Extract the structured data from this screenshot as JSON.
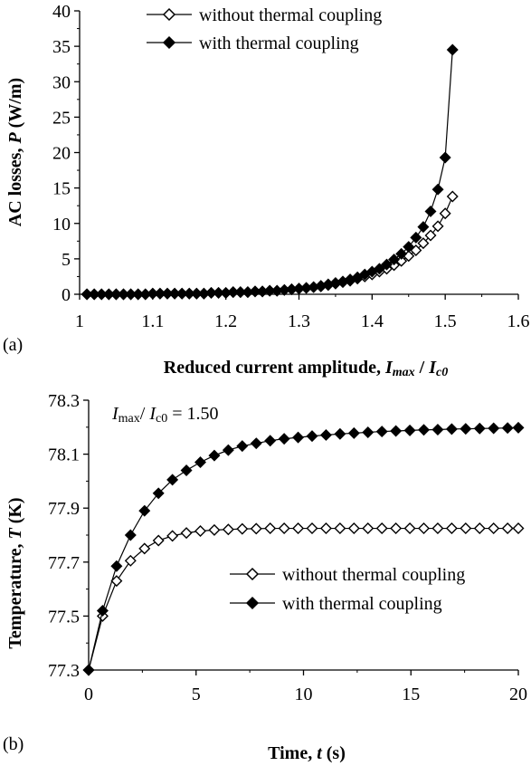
{
  "chart_data": [
    {
      "type": "line",
      "panel_label": "(a)",
      "xlabel": "Reduced current amplitude, ",
      "xlabel_sym": {
        "a": "I",
        "a_sub": "max",
        "sep": " / ",
        "b": "I",
        "b_sub": "c0"
      },
      "ylabel": "AC losses, ",
      "ylabel_sym": "P",
      "ylabel_unit": " (W/m)",
      "xlim": [
        1,
        1.6
      ],
      "ylim": [
        0,
        40
      ],
      "x_ticks": [
        "1",
        "1.1",
        "1.2",
        "1.3",
        "1.4",
        "1.5",
        "1.6"
      ],
      "y_ticks": [
        "0",
        "5",
        "10",
        "15",
        "20",
        "25",
        "30",
        "35",
        "40"
      ],
      "legend_position": "top",
      "series": [
        {
          "name": "without thermal coupling",
          "marker": "open-diamond",
          "x": [
            1.01,
            1.02,
            1.03,
            1.04,
            1.05,
            1.06,
            1.07,
            1.08,
            1.09,
            1.1,
            1.11,
            1.12,
            1.13,
            1.14,
            1.15,
            1.16,
            1.17,
            1.18,
            1.19,
            1.2,
            1.21,
            1.22,
            1.23,
            1.24,
            1.25,
            1.26,
            1.27,
            1.28,
            1.29,
            1.3,
            1.31,
            1.32,
            1.33,
            1.34,
            1.35,
            1.36,
            1.37,
            1.38,
            1.39,
            1.4,
            1.41,
            1.42,
            1.43,
            1.44,
            1.45,
            1.46,
            1.47,
            1.48,
            1.49,
            1.5,
            1.51
          ],
          "y": [
            0,
            0,
            0,
            0,
            0,
            0,
            0,
            0,
            0,
            0.1,
            0.1,
            0.1,
            0.1,
            0.1,
            0.1,
            0.1,
            0.1,
            0.2,
            0.2,
            0.2,
            0.3,
            0.3,
            0.3,
            0.4,
            0.4,
            0.5,
            0.5,
            0.6,
            0.7,
            0.8,
            0.9,
            1.0,
            1.1,
            1.3,
            1.5,
            1.7,
            1.9,
            2.2,
            2.5,
            2.8,
            3.2,
            3.6,
            4.1,
            4.7,
            5.4,
            6.2,
            7.2,
            8.3,
            9.6,
            11.4,
            13.8
          ]
        },
        {
          "name": "with thermal coupling",
          "marker": "filled-diamond",
          "x": [
            1.01,
            1.02,
            1.03,
            1.04,
            1.05,
            1.06,
            1.07,
            1.08,
            1.09,
            1.1,
            1.11,
            1.12,
            1.13,
            1.14,
            1.15,
            1.16,
            1.17,
            1.18,
            1.19,
            1.2,
            1.21,
            1.22,
            1.23,
            1.24,
            1.25,
            1.26,
            1.27,
            1.28,
            1.29,
            1.3,
            1.31,
            1.32,
            1.33,
            1.34,
            1.35,
            1.36,
            1.37,
            1.38,
            1.39,
            1.4,
            1.41,
            1.42,
            1.43,
            1.44,
            1.45,
            1.46,
            1.47,
            1.48,
            1.49,
            1.5,
            1.51
          ],
          "y": [
            0,
            0,
            0,
            0,
            0,
            0,
            0,
            0,
            0,
            0.1,
            0.1,
            0.1,
            0.1,
            0.1,
            0.1,
            0.1,
            0.1,
            0.2,
            0.2,
            0.2,
            0.3,
            0.3,
            0.3,
            0.4,
            0.4,
            0.5,
            0.5,
            0.6,
            0.7,
            0.8,
            0.9,
            1.0,
            1.2,
            1.4,
            1.6,
            1.8,
            2.1,
            2.4,
            2.8,
            3.2,
            3.6,
            4.2,
            4.9,
            5.7,
            6.7,
            8.0,
            9.5,
            11.7,
            14.8,
            19.3,
            34.5
          ]
        }
      ]
    },
    {
      "type": "line",
      "panel_label": "(b)",
      "annotation": {
        "a": "I",
        "a_sub": "max",
        "sep": "/ ",
        "b": "I",
        "b_sub": "c0",
        "value": " = 1.50"
      },
      "xlabel": "Time, ",
      "xlabel_sym": "t",
      "xlabel_unit": "  (s)",
      "ylabel": "Temperature, ",
      "ylabel_sym": "T",
      "ylabel_unit": " (K)",
      "xlim": [
        0,
        20
      ],
      "ylim": [
        77.3,
        78.3
      ],
      "x_ticks": [
        "0",
        "5",
        "10",
        "15",
        "20"
      ],
      "y_ticks": [
        "77.3",
        "77.5",
        "77.7",
        "77.9",
        "78.1",
        "78.3"
      ],
      "legend_position": "right",
      "series": [
        {
          "name": "without thermal coupling",
          "marker": "open-diamond",
          "x": [
            0,
            0.65,
            1.3,
            1.95,
            2.6,
            3.25,
            3.9,
            4.55,
            5.2,
            5.85,
            6.5,
            7.15,
            7.8,
            8.45,
            9.1,
            9.75,
            10.4,
            11.05,
            11.7,
            12.35,
            13.0,
            13.65,
            14.3,
            14.95,
            15.6,
            16.25,
            16.9,
            17.55,
            18.2,
            18.85,
            19.5,
            20
          ],
          "y": [
            77.3,
            77.5,
            77.63,
            77.705,
            77.75,
            77.78,
            77.797,
            77.808,
            77.815,
            77.819,
            77.821,
            77.823,
            77.824,
            77.825,
            77.825,
            77.825,
            77.825,
            77.825,
            77.825,
            77.825,
            77.825,
            77.825,
            77.825,
            77.825,
            77.825,
            77.825,
            77.825,
            77.825,
            77.825,
            77.825,
            77.825,
            77.825
          ]
        },
        {
          "name": "with thermal coupling",
          "marker": "filled-diamond",
          "x": [
            0,
            0.65,
            1.3,
            1.95,
            2.6,
            3.25,
            3.9,
            4.55,
            5.2,
            5.85,
            6.5,
            7.15,
            7.8,
            8.45,
            9.1,
            9.75,
            10.4,
            11.05,
            11.7,
            12.35,
            13.0,
            13.65,
            14.3,
            14.95,
            15.6,
            16.25,
            16.9,
            17.55,
            18.2,
            18.85,
            19.5,
            20
          ],
          "y": [
            77.3,
            77.52,
            77.685,
            77.8,
            77.89,
            77.955,
            78.005,
            78.04,
            78.07,
            78.095,
            78.115,
            78.13,
            78.14,
            78.15,
            78.157,
            78.162,
            78.167,
            78.171,
            78.175,
            78.178,
            78.181,
            78.184,
            78.186,
            78.188,
            78.19,
            78.191,
            78.193,
            78.194,
            78.195,
            78.196,
            78.197,
            78.198
          ]
        }
      ]
    }
  ]
}
